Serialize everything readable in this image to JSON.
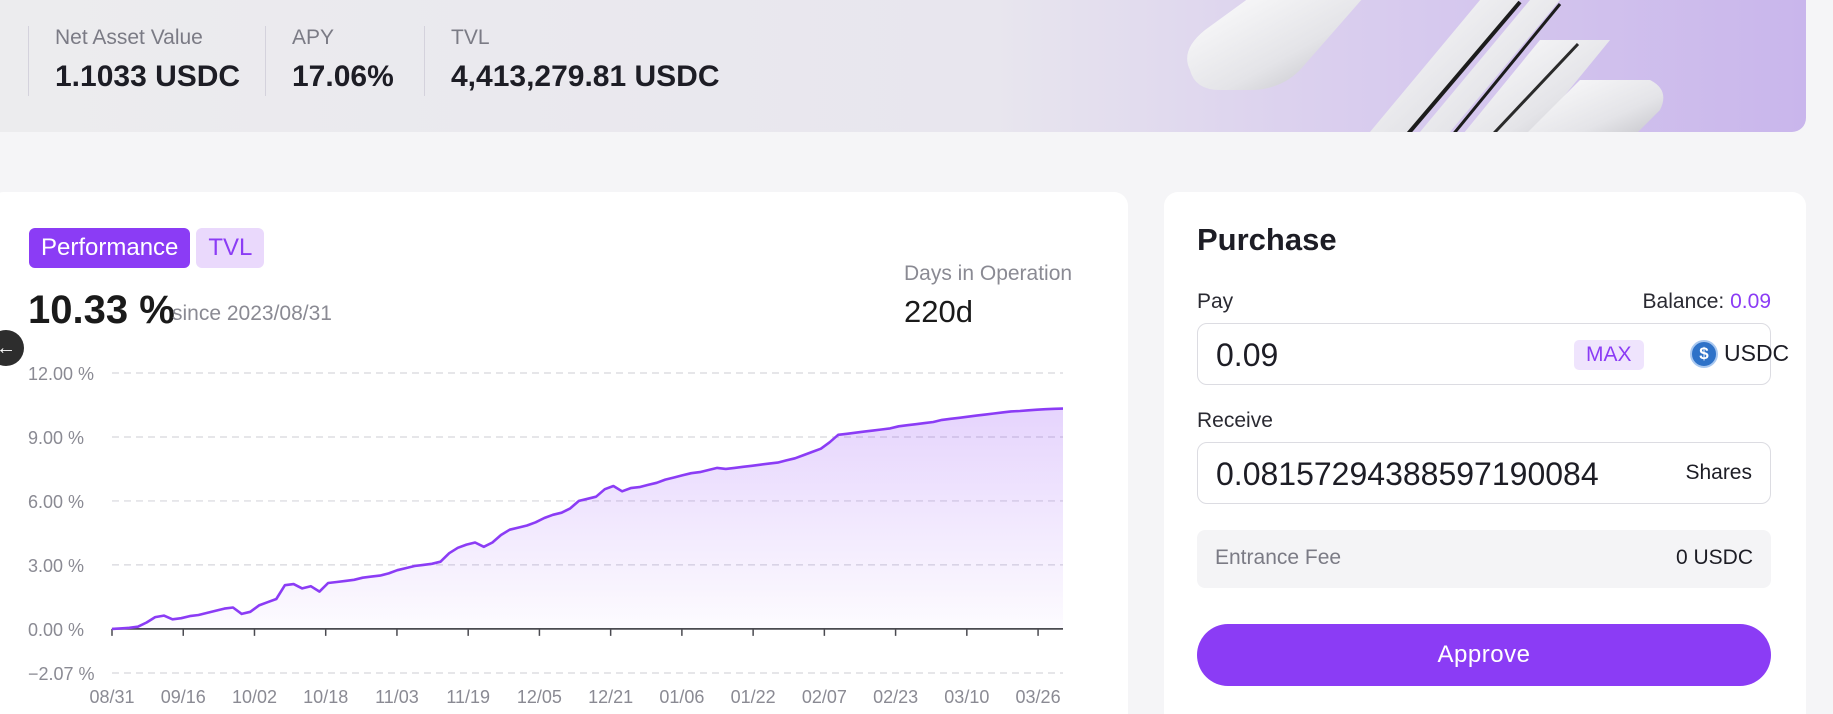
{
  "stats": [
    {
      "label": "Net Asset Value",
      "value": "1.1033 USDC"
    },
    {
      "label": "APY",
      "value": "17.06%"
    },
    {
      "label": "TVL",
      "value": "4,413,279.81 USDC"
    }
  ],
  "tabs": {
    "performance": "Performance",
    "tvl": "TVL"
  },
  "performance": {
    "value": "10.33 %",
    "since": "since 2023/08/31"
  },
  "operation": {
    "label": "Days in Operation",
    "value": "220d"
  },
  "icons": {
    "back": "arrow-left-icon",
    "usdc": "usdc-coin-icon"
  },
  "colors": {
    "accent": "#8b3cf5",
    "accent_light": "#ead9fc"
  },
  "purchase": {
    "title": "Purchase",
    "pay_label": "Pay",
    "balance_label": "Balance:",
    "balance_value": "0.09",
    "pay_value": "0.09",
    "max_label": "MAX",
    "currency": "USDC",
    "receive_label": "Receive",
    "receive_value": "0.08157294388597190084",
    "shares_label": "Shares",
    "fee_label": "Entrance Fee",
    "fee_value": "0 USDC",
    "approve_label": "Approve"
  },
  "chart_data": {
    "type": "area",
    "ylim": [
      -2.07,
      12.0
    ],
    "y_ticks": [
      "12.00  %",
      "9.00  %",
      "6.00  %",
      "3.00  %",
      "0.00  %",
      "−2.07  %"
    ],
    "y_tick_values": [
      12.0,
      9.0,
      6.0,
      3.0,
      0.0,
      -2.07
    ],
    "x_ticks": [
      "08/31",
      "09/16",
      "10/02",
      "10/18",
      "11/03",
      "11/19",
      "12/05",
      "12/21",
      "01/06",
      "01/22",
      "02/07",
      "02/23",
      "03/10",
      "03/26"
    ],
    "grid": true,
    "series": [
      {
        "x": [
          0,
          2,
          4,
          6,
          8,
          10,
          12,
          14,
          16,
          18,
          20,
          22,
          24,
          26,
          28,
          30,
          32,
          34,
          36,
          38,
          40,
          42,
          44,
          46,
          48,
          50,
          52,
          54,
          56,
          58,
          60,
          62,
          64,
          66,
          68,
          70,
          72,
          74,
          76,
          78,
          80,
          82,
          84,
          86,
          88,
          90,
          92,
          94,
          96,
          98,
          100,
          102,
          104,
          106,
          108,
          110,
          112,
          114,
          116,
          118,
          120,
          122,
          124,
          126,
          128,
          130,
          132,
          134,
          136,
          138,
          140,
          142,
          144,
          146,
          148,
          150,
          152,
          154,
          156,
          158,
          160,
          162,
          164,
          166,
          168,
          170,
          172,
          174,
          176,
          178,
          180,
          182,
          184,
          186,
          188,
          190,
          192,
          194,
          196,
          198,
          200,
          202,
          204,
          206,
          208,
          210,
          212,
          214,
          216,
          218,
          220
        ],
        "y": [
          0.0,
          0.02,
          0.05,
          0.1,
          0.3,
          0.55,
          0.62,
          0.45,
          0.5,
          0.6,
          0.65,
          0.75,
          0.85,
          0.95,
          1.0,
          0.7,
          0.8,
          1.1,
          1.25,
          1.4,
          2.05,
          2.1,
          1.9,
          2.0,
          1.75,
          2.15,
          2.2,
          2.25,
          2.3,
          2.4,
          2.45,
          2.5,
          2.6,
          2.75,
          2.85,
          2.95,
          3.0,
          3.05,
          3.15,
          3.55,
          3.8,
          3.95,
          4.05,
          3.85,
          4.05,
          4.4,
          4.65,
          4.75,
          4.85,
          5.0,
          5.2,
          5.35,
          5.45,
          5.65,
          6.0,
          6.1,
          6.2,
          6.55,
          6.7,
          6.45,
          6.6,
          6.65,
          6.75,
          6.85,
          7.0,
          7.1,
          7.2,
          7.3,
          7.35,
          7.45,
          7.55,
          7.5,
          7.55,
          7.6,
          7.65,
          7.7,
          7.75,
          7.8,
          7.9,
          8.0,
          8.15,
          8.3,
          8.45,
          8.75,
          9.1,
          9.15,
          9.2,
          9.25,
          9.3,
          9.35,
          9.4,
          9.5,
          9.55,
          9.6,
          9.65,
          9.7,
          9.8,
          9.85,
          9.9,
          9.95,
          10.0,
          10.05,
          10.1,
          10.15,
          10.2,
          10.22,
          10.25,
          10.28,
          10.3,
          10.32,
          10.33
        ]
      }
    ]
  }
}
